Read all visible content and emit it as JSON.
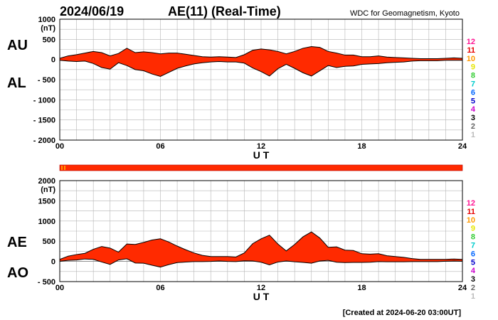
{
  "header": {
    "date": "2024/06/19",
    "index": "AE(11) (Real-Time)",
    "source": "WDC for Geomagnetism, Kyoto",
    "footer": "[Created at 2024-06-20 03:00UT]"
  },
  "legend": {
    "levels": [
      "12",
      "11",
      "10",
      "9",
      "8",
      "7",
      "6",
      "5",
      "4",
      "3",
      "2",
      "1"
    ],
    "colors": [
      "#ff1493",
      "#e60000",
      "#ff9900",
      "#e6e600",
      "#33cc33",
      "#00cccc",
      "#0066ff",
      "#0000cc",
      "#cc00cc",
      "#000000",
      "#666666",
      "#bbbbbb"
    ]
  },
  "chart_data": [
    {
      "type": "area",
      "name": "AU/AL",
      "upper_label": "AU",
      "lower_label": "AL",
      "unit": "(nT)",
      "xlabel": "U T",
      "x_ticks": [
        "00",
        "06",
        "12",
        "18",
        "24"
      ],
      "y_ticks": [
        "1000",
        "500",
        "0",
        "- 500",
        "- 1000",
        "- 1500",
        "- 2000"
      ],
      "xlim": [
        0,
        24
      ],
      "ylim": [
        -2000,
        1000
      ],
      "fill_color": "#ff2a00",
      "x": [
        0,
        0.5,
        1,
        1.5,
        2,
        2.5,
        3,
        3.5,
        4,
        4.5,
        5,
        5.5,
        6,
        6.5,
        7,
        7.5,
        8,
        8.5,
        9,
        9.5,
        10,
        10.5,
        11,
        11.5,
        12,
        12.5,
        13,
        13.5,
        14,
        14.5,
        15,
        15.5,
        16,
        16.5,
        17,
        17.5,
        18,
        18.5,
        19,
        19.5,
        20,
        20.5,
        21,
        21.5,
        22,
        22.5,
        23,
        23.5,
        24
      ],
      "series": [
        {
          "name": "AU",
          "values": [
            30,
            90,
            120,
            160,
            200,
            170,
            90,
            150,
            280,
            170,
            190,
            170,
            140,
            160,
            160,
            130,
            100,
            70,
            60,
            70,
            60,
            50,
            120,
            230,
            260,
            240,
            200,
            140,
            200,
            280,
            320,
            300,
            200,
            160,
            110,
            110,
            70,
            70,
            90,
            60,
            50,
            40,
            30,
            20,
            20,
            20,
            30,
            40,
            30
          ]
        },
        {
          "name": "AL",
          "values": [
            -20,
            -40,
            -50,
            -40,
            -100,
            -200,
            -240,
            -80,
            -150,
            -250,
            -280,
            -360,
            -420,
            -320,
            -220,
            -160,
            -110,
            -80,
            -60,
            -50,
            -60,
            -60,
            -90,
            -210,
            -300,
            -410,
            -230,
            -120,
            -220,
            -330,
            -410,
            -280,
            -150,
            -200,
            -170,
            -160,
            -120,
            -110,
            -100,
            -80,
            -70,
            -60,
            -40,
            -30,
            -30,
            -30,
            -20,
            -20,
            -20
          ]
        }
      ]
    },
    {
      "type": "area",
      "name": "AE/AO",
      "upper_label": "AE",
      "lower_label": "AO",
      "unit": "(nT)",
      "xlabel": "U T",
      "x_ticks": [
        "00",
        "06",
        "12",
        "18",
        "24"
      ],
      "y_ticks": [
        "2000",
        "1500",
        "1000",
        "500",
        "0",
        "- 500"
      ],
      "xlim": [
        0,
        24
      ],
      "ylim": [
        -500,
        2000
      ],
      "fill_color": "#ff2a00",
      "x": [
        0,
        0.5,
        1,
        1.5,
        2,
        2.5,
        3,
        3.5,
        4,
        4.5,
        5,
        5.5,
        6,
        6.5,
        7,
        7.5,
        8,
        8.5,
        9,
        9.5,
        10,
        10.5,
        11,
        11.5,
        12,
        12.5,
        13,
        13.5,
        14,
        14.5,
        15,
        15.5,
        16,
        16.5,
        17,
        17.5,
        18,
        18.5,
        19,
        19.5,
        20,
        20.5,
        21,
        21.5,
        22,
        22.5,
        23,
        23.5,
        24
      ],
      "series": [
        {
          "name": "AE",
          "values": [
            50,
            130,
            170,
            200,
            300,
            370,
            330,
            230,
            430,
            420,
            470,
            530,
            560,
            480,
            380,
            290,
            210,
            150,
            120,
            120,
            120,
            110,
            210,
            440,
            560,
            650,
            430,
            260,
            420,
            610,
            730,
            580,
            350,
            360,
            280,
            270,
            190,
            180,
            190,
            140,
            120,
            100,
            70,
            50,
            50,
            50,
            50,
            60,
            50
          ]
        },
        {
          "name": "AO",
          "values": [
            5,
            25,
            35,
            60,
            50,
            -15,
            -75,
            35,
            65,
            -40,
            -45,
            -95,
            -140,
            -80,
            -30,
            -15,
            -5,
            -5,
            0,
            10,
            0,
            -5,
            15,
            10,
            -20,
            -85,
            -15,
            10,
            -10,
            -25,
            -45,
            10,
            25,
            -20,
            -30,
            -25,
            -25,
            -20,
            -5,
            -10,
            -10,
            -10,
            -5,
            -5,
            -5,
            -5,
            5,
            10,
            5
          ]
        }
      ]
    }
  ]
}
